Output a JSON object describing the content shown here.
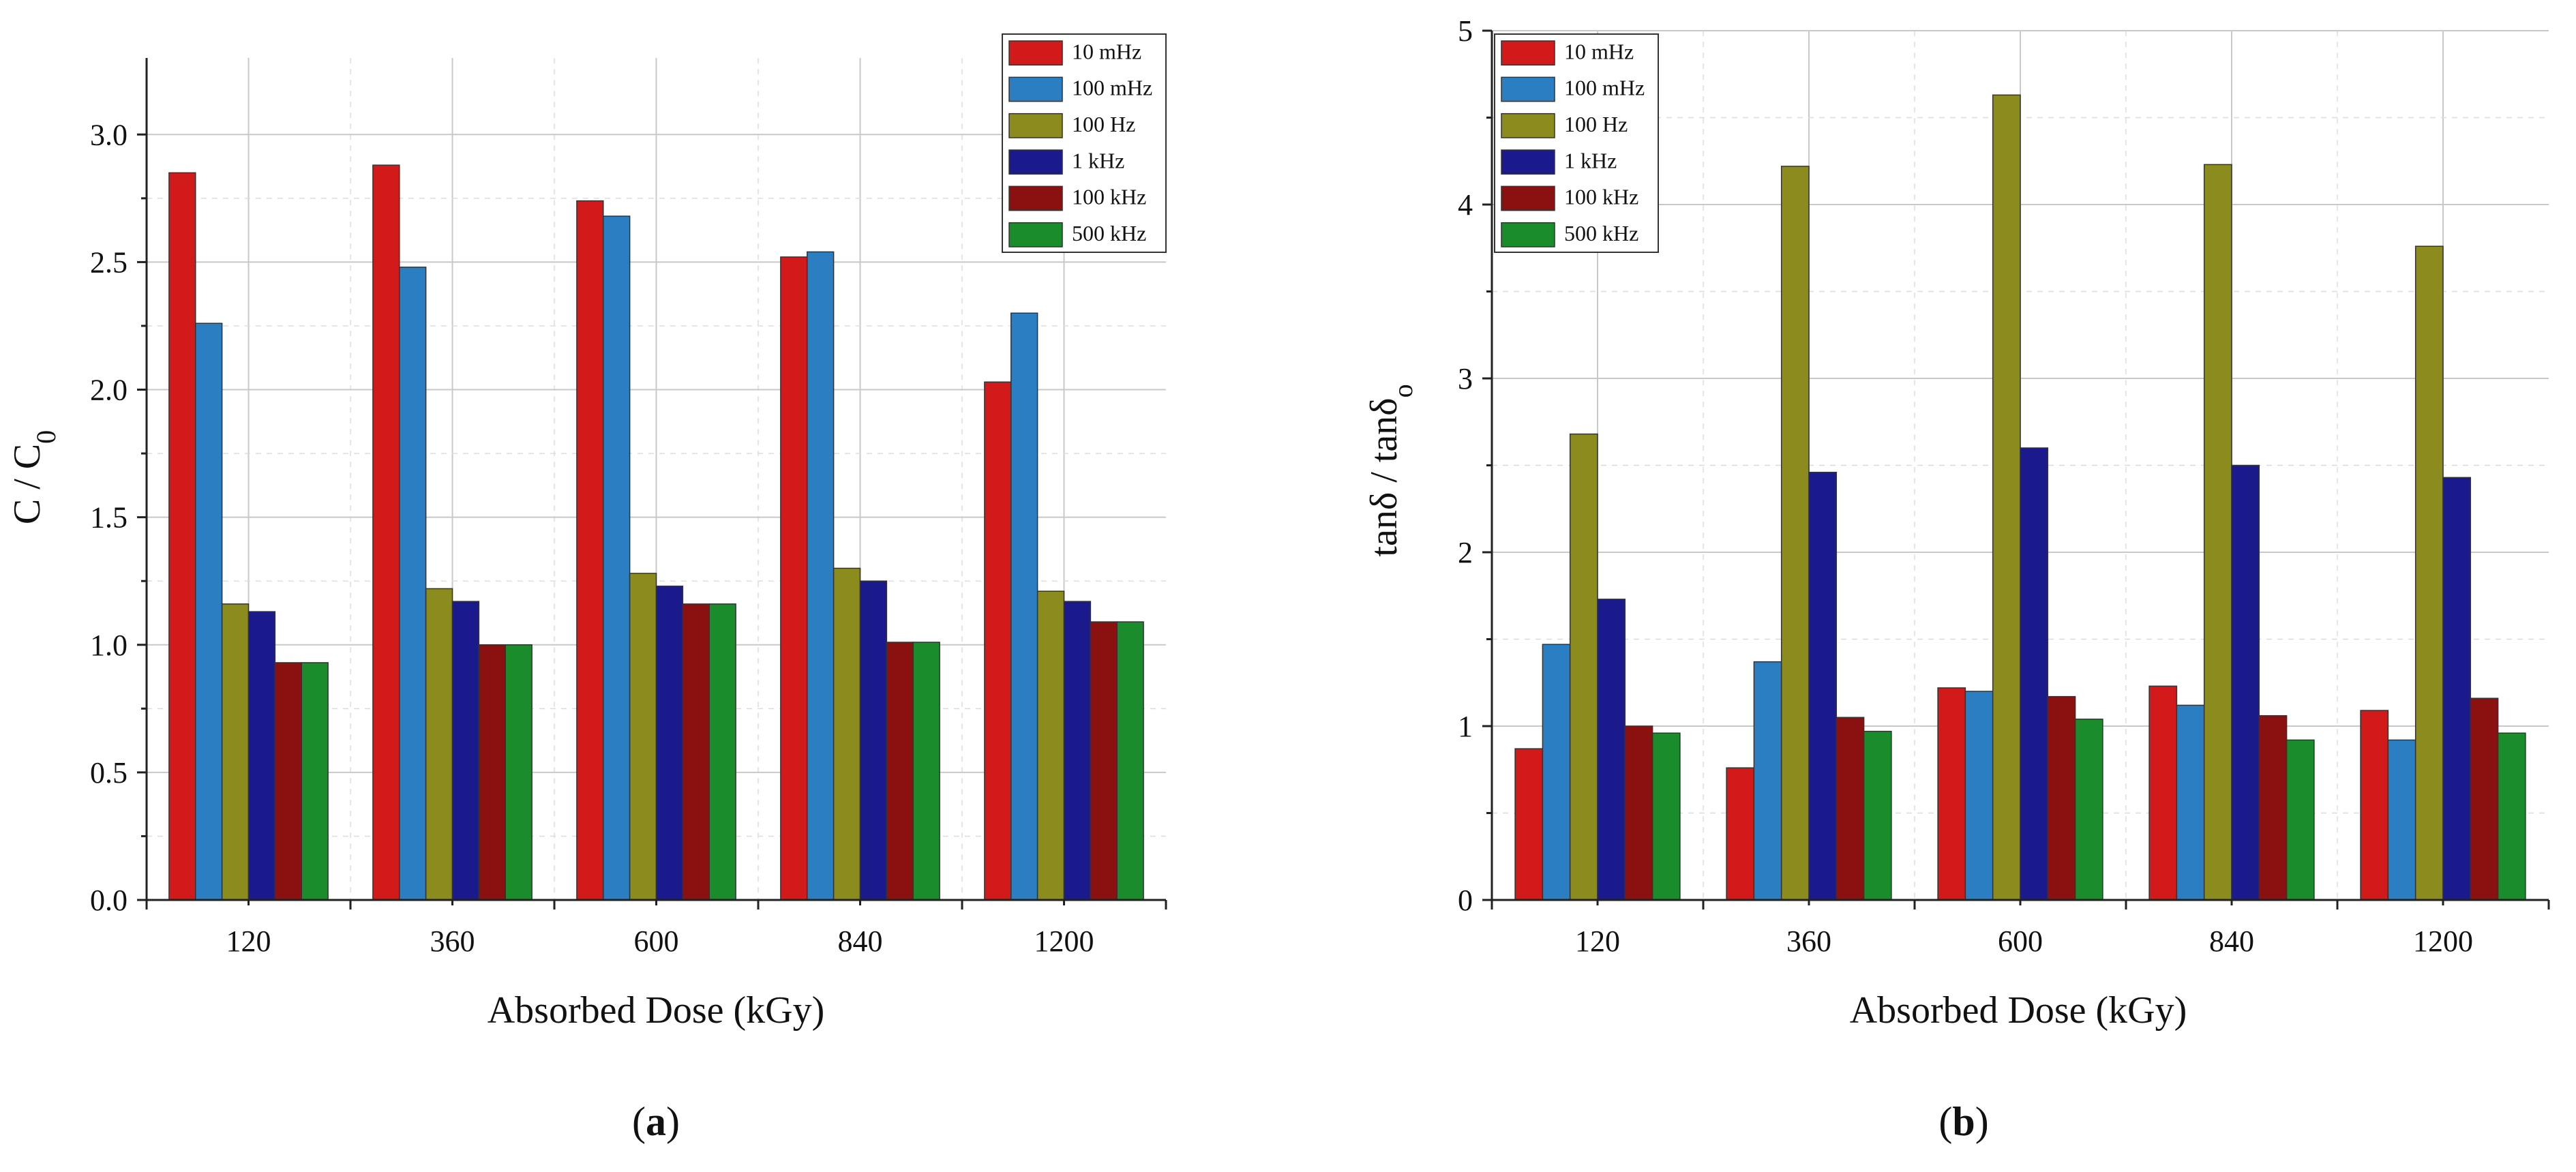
{
  "chart_data": [
    {
      "type": "bar",
      "panel": "a",
      "title": "",
      "xlabel": "Absorbed Dose (kGy)",
      "ylabel": "C / C",
      "ylabel_sub": "0",
      "categories": [
        "120",
        "360",
        "600",
        "840",
        "1200"
      ],
      "ylim": [
        0,
        3.3
      ],
      "yticks": [
        0.0,
        0.5,
        1.0,
        1.5,
        2.0,
        2.5,
        3.0
      ],
      "ytick_labels": [
        "0.0",
        "0.5",
        "1.0",
        "1.5",
        "2.0",
        "2.5",
        "3.0"
      ],
      "legend_position": "top-right",
      "series": [
        {
          "name": "10 mHz",
          "color": "#d21a1a",
          "values": [
            2.85,
            2.88,
            2.74,
            2.52,
            2.03
          ]
        },
        {
          "name": "100 mHz",
          "color": "#2b7ec1",
          "values": [
            2.26,
            2.48,
            2.68,
            2.54,
            2.3
          ]
        },
        {
          "name": "100 Hz",
          "color": "#8b8b1e",
          "values": [
            1.16,
            1.22,
            1.28,
            1.3,
            1.21
          ]
        },
        {
          "name": "1 kHz",
          "color": "#1a1a8c",
          "values": [
            1.13,
            1.17,
            1.23,
            1.25,
            1.17
          ]
        },
        {
          "name": "100 kHz",
          "color": "#8b1010",
          "values": [
            0.93,
            1.0,
            1.16,
            1.01,
            1.09
          ]
        },
        {
          "name": "500 kHz",
          "color": "#1a8c2b",
          "values": [
            0.93,
            1.0,
            1.16,
            1.01,
            1.09
          ]
        }
      ],
      "panel_label": "(a)"
    },
    {
      "type": "bar",
      "panel": "b",
      "title": "",
      "xlabel": "Absorbed Dose (kGy)",
      "ylabel": "tanδ / tanδ",
      "ylabel_sub": "o",
      "categories": [
        "120",
        "360",
        "600",
        "840",
        "1200"
      ],
      "ylim": [
        0,
        5
      ],
      "yticks": [
        0,
        1,
        2,
        3,
        4,
        5
      ],
      "ytick_labels": [
        "0",
        "1",
        "2",
        "3",
        "4",
        "5"
      ],
      "legend_position": "top-left",
      "series": [
        {
          "name": "10 mHz",
          "color": "#d21a1a",
          "values": [
            0.87,
            0.76,
            1.22,
            1.23,
            1.09
          ]
        },
        {
          "name": "100 mHz",
          "color": "#2b7ec1",
          "values": [
            1.47,
            1.37,
            1.2,
            1.12,
            0.92
          ]
        },
        {
          "name": "100 Hz",
          "color": "#8b8b1e",
          "values": [
            2.68,
            4.22,
            4.63,
            4.23,
            3.76
          ]
        },
        {
          "name": "1 kHz",
          "color": "#1a1a8c",
          "values": [
            1.73,
            2.46,
            2.6,
            2.5,
            2.43
          ]
        },
        {
          "name": "100 kHz",
          "color": "#8b1010",
          "values": [
            1.0,
            1.05,
            1.17,
            1.06,
            1.16
          ]
        },
        {
          "name": "500 kHz",
          "color": "#1a8c2b",
          "values": [
            0.96,
            0.97,
            1.04,
            0.92,
            0.96
          ]
        }
      ],
      "panel_label": "(b)"
    }
  ]
}
